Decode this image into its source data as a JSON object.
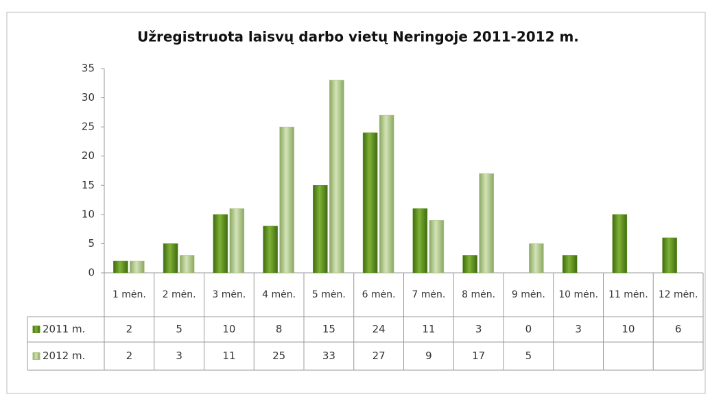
{
  "chart_data": {
    "type": "bar",
    "title": "Užregistruota laisvų darbo vietų Neringoje 2011-2012  m.",
    "categories": [
      "1 mėn.",
      "2 mėn.",
      "3 mėn.",
      "4 mėn.",
      "5 mėn.",
      "6 mėn.",
      "7 mėn.",
      "8 mėn.",
      "9 mėn.",
      "10 mėn.",
      "11 mėn.",
      "12 mėn."
    ],
    "series": [
      {
        "name": "2011 m.",
        "color": "#5f9420",
        "values": [
          2,
          5,
          10,
          8,
          15,
          24,
          11,
          3,
          0,
          3,
          10,
          6
        ]
      },
      {
        "name": "2012 m.",
        "color": "#a8c27c",
        "values": [
          2,
          3,
          11,
          25,
          33,
          27,
          9,
          17,
          5,
          null,
          null,
          null
        ]
      }
    ],
    "ylim": [
      0,
      35
    ],
    "yticks": [
      0,
      5,
      10,
      15,
      20,
      25,
      30,
      35
    ],
    "grid": false,
    "data_table": true
  }
}
